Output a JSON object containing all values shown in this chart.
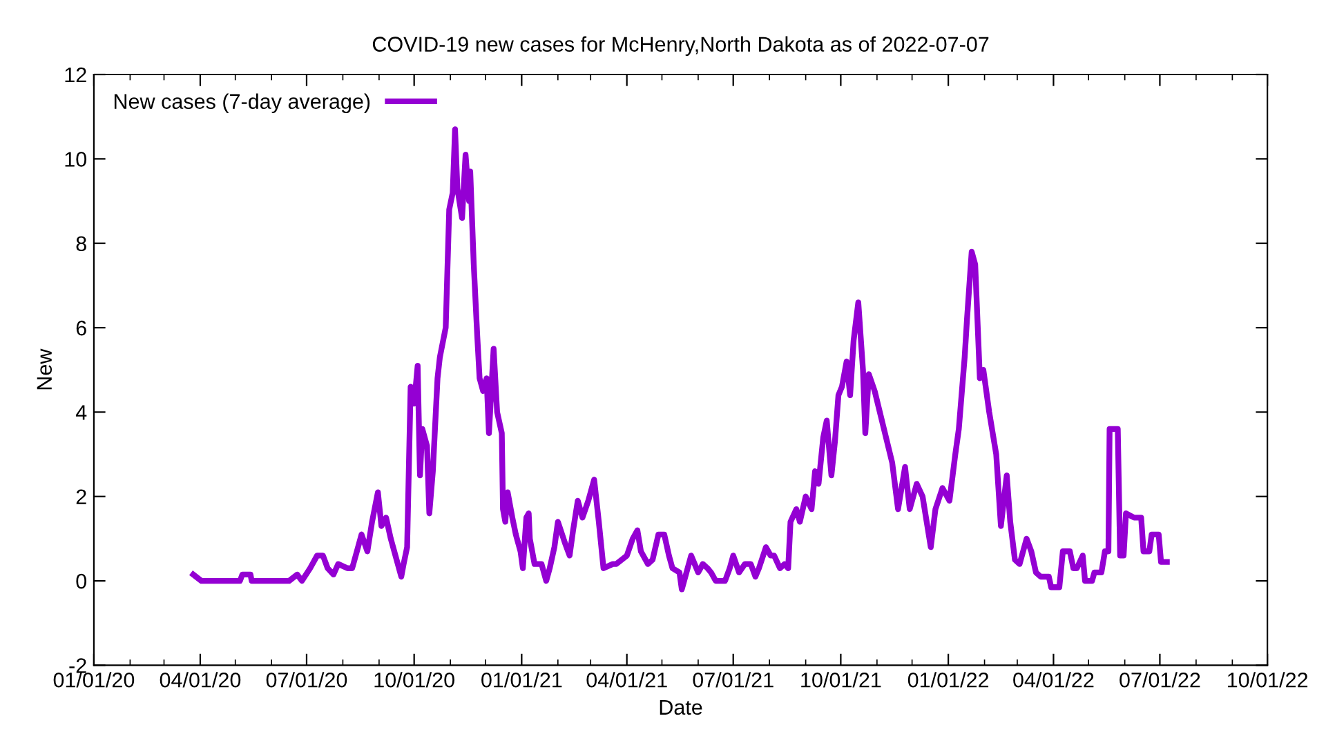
{
  "chart_data": {
    "type": "line",
    "title": "COVID-19 new cases for McHenry,North Dakota as of 2022-07-07",
    "xlabel": "Date",
    "ylabel": "New",
    "xlim": [
      "2020-01-01",
      "2022-10-01"
    ],
    "xticks": [
      {
        "value": "2020-01-01",
        "label": "01/01/20"
      },
      {
        "value": "2020-04-01",
        "label": "04/01/20"
      },
      {
        "value": "2020-07-01",
        "label": "07/01/20"
      },
      {
        "value": "2020-10-01",
        "label": "10/01/20"
      },
      {
        "value": "2021-01-01",
        "label": "01/01/21"
      },
      {
        "value": "2021-04-01",
        "label": "04/01/21"
      },
      {
        "value": "2021-07-01",
        "label": "07/01/21"
      },
      {
        "value": "2021-10-01",
        "label": "10/01/21"
      },
      {
        "value": "2022-01-01",
        "label": "01/01/22"
      },
      {
        "value": "2022-04-01",
        "label": "04/01/22"
      },
      {
        "value": "2022-07-01",
        "label": "07/01/22"
      },
      {
        "value": "2022-10-01",
        "label": "10/01/22"
      }
    ],
    "ylim": [
      -2,
      12
    ],
    "yticks": [
      -2,
      0,
      2,
      4,
      6,
      8,
      10,
      12
    ],
    "grid": false,
    "legend": "top left",
    "marker": "none",
    "line_style": "solid",
    "series": [
      {
        "name": "New cases (7-day average)",
        "color": "#9400d3",
        "x": [
          "2020-03-26",
          "2020-04-02",
          "2020-05-05",
          "2020-05-07",
          "2020-05-14",
          "2020-05-15",
          "2020-06-16",
          "2020-06-23",
          "2020-06-27",
          "2020-07-04",
          "2020-07-10",
          "2020-07-15",
          "2020-07-19",
          "2020-07-24",
          "2020-07-28",
          "2020-08-05",
          "2020-08-09",
          "2020-08-13",
          "2020-08-17",
          "2020-08-22",
          "2020-08-26",
          "2020-08-31",
          "2020-09-03",
          "2020-09-07",
          "2020-09-11",
          "2020-09-15",
          "2020-09-20",
          "2020-09-22",
          "2020-09-25",
          "2020-09-28",
          "2020-10-01",
          "2020-10-04",
          "2020-10-06",
          "2020-10-08",
          "2020-10-12",
          "2020-10-14",
          "2020-10-17",
          "2020-10-21",
          "2020-10-23",
          "2020-10-28",
          "2020-10-31",
          "2020-11-03",
          "2020-11-05",
          "2020-11-07",
          "2020-11-11",
          "2020-11-14",
          "2020-11-17",
          "2020-11-18",
          "2020-11-21",
          "2020-11-24",
          "2020-11-26",
          "2020-11-29",
          "2020-12-02",
          "2020-12-04",
          "2020-12-08",
          "2020-12-11",
          "2020-12-15",
          "2020-12-16",
          "2020-12-18",
          "2020-12-20",
          "2020-12-24",
          "2020-12-27",
          "2020-12-31",
          "2021-01-02",
          "2021-01-05",
          "2021-01-07",
          "2021-01-08",
          "2021-01-12",
          "2021-01-18",
          "2021-01-22",
          "2021-01-25",
          "2021-01-29",
          "2021-02-01",
          "2021-02-07",
          "2021-02-11",
          "2021-02-14",
          "2021-02-18",
          "2021-02-22",
          "2021-02-27",
          "2021-03-04",
          "2021-03-08",
          "2021-03-12",
          "2021-03-20",
          "2021-03-23",
          "2021-04-01",
          "2021-04-06",
          "2021-04-10",
          "2021-04-13",
          "2021-04-19",
          "2021-04-23",
          "2021-04-28",
          "2021-05-03",
          "2021-05-07",
          "2021-05-10",
          "2021-05-16",
          "2021-05-18",
          "2021-05-22",
          "2021-05-26",
          "2021-06-01",
          "2021-06-05",
          "2021-06-09",
          "2021-06-12",
          "2021-06-16",
          "2021-06-24",
          "2021-06-28",
          "2021-07-01",
          "2021-07-06",
          "2021-07-11",
          "2021-07-16",
          "2021-07-20",
          "2021-07-23",
          "2021-07-29",
          "2021-08-02",
          "2021-08-05",
          "2021-08-10",
          "2021-08-14",
          "2021-08-17",
          "2021-08-19",
          "2021-08-24",
          "2021-08-27",
          "2021-09-01",
          "2021-09-06",
          "2021-09-09",
          "2021-09-12",
          "2021-09-16",
          "2021-09-19",
          "2021-09-23",
          "2021-09-26",
          "2021-09-29",
          "2021-10-02",
          "2021-10-06",
          "2021-10-09",
          "2021-10-12",
          "2021-10-16",
          "2021-10-20",
          "2021-10-22",
          "2021-10-25",
          "2021-10-30",
          "2021-11-14",
          "2021-11-19",
          "2021-11-25",
          "2021-11-29",
          "2021-12-05",
          "2021-12-10",
          "2021-12-17",
          "2021-12-21",
          "2021-12-27",
          "2022-01-02",
          "2022-01-07",
          "2022-01-10",
          "2022-01-15",
          "2022-01-17",
          "2022-01-21",
          "2022-01-24",
          "2022-01-28",
          "2022-01-31",
          "2022-02-05",
          "2022-02-11",
          "2022-02-15",
          "2022-02-20",
          "2022-02-23",
          "2022-02-27",
          "2022-03-03",
          "2022-03-09",
          "2022-03-13",
          "2022-03-17",
          "2022-03-21",
          "2022-03-28",
          "2022-03-30",
          "2022-04-06",
          "2022-04-09",
          "2022-04-15",
          "2022-04-18",
          "2022-04-21",
          "2022-04-26",
          "2022-04-28",
          "2022-05-04",
          "2022-05-06",
          "2022-05-12",
          "2022-05-15",
          "2022-05-18",
          "2022-05-19",
          "2022-05-26",
          "2022-05-28",
          "2022-05-31",
          "2022-06-02",
          "2022-06-09",
          "2022-06-15",
          "2022-06-17",
          "2022-06-22",
          "2022-06-24",
          "2022-06-30",
          "2022-07-02",
          "2022-07-07"
        ],
        "values": [
          0.15,
          0,
          0,
          0.15,
          0.15,
          0,
          0,
          0.15,
          0,
          0.3,
          0.6,
          0.6,
          0.3,
          0.15,
          0.4,
          0.3,
          0.3,
          0.7,
          1.1,
          0.7,
          1.4,
          2.1,
          1.3,
          1.5,
          1.0,
          0.6,
          0.1,
          0.4,
          0.8,
          4.6,
          4.2,
          5.1,
          2.5,
          3.6,
          3.2,
          1.6,
          2.6,
          4.8,
          5.3,
          6.0,
          8.8,
          9.2,
          10.7,
          9.3,
          8.6,
          10.1,
          9.0,
          9.7,
          7.5,
          5.8,
          4.8,
          4.5,
          4.8,
          3.5,
          5.5,
          4.0,
          3.5,
          1.7,
          1.4,
          2.1,
          1.5,
          1.1,
          0.7,
          0.3,
          1.5,
          1.6,
          1.0,
          0.4,
          0.4,
          0,
          0.3,
          0.8,
          1.4,
          0.9,
          0.6,
          1.2,
          1.9,
          1.5,
          1.9,
          2.4,
          1.4,
          0.3,
          0.4,
          0.4,
          0.6,
          1.0,
          1.2,
          0.7,
          0.4,
          0.5,
          1.1,
          1.1,
          0.6,
          0.3,
          0.2,
          -0.2,
          0.2,
          0.6,
          0.2,
          0.4,
          0.3,
          0.2,
          0,
          0,
          0.3,
          0.6,
          0.2,
          0.4,
          0.4,
          0.1,
          0.3,
          0.8,
          0.6,
          0.6,
          0.3,
          0.4,
          0.3,
          1.4,
          1.7,
          1.4,
          2.0,
          1.7,
          2.6,
          2.3,
          3.4,
          3.8,
          2.5,
          3.3,
          4.4,
          4.6,
          5.2,
          4.4,
          5.7,
          6.6,
          5.0,
          3.5,
          4.9,
          4.5,
          2.8,
          1.7,
          2.7,
          1.7,
          2.3,
          2.0,
          0.8,
          1.7,
          2.2,
          1.9,
          3.0,
          3.6,
          5.3,
          6.2,
          7.8,
          7.5,
          4.8,
          5.0,
          4.0,
          3.0,
          1.3,
          2.5,
          1.4,
          0.5,
          0.4,
          1.0,
          0.7,
          0.2,
          0.1,
          0.1,
          -0.15,
          -0.15,
          0.7,
          0.7,
          0.3,
          0.3,
          0.6,
          0,
          0,
          0.2,
          0.2,
          0.7,
          0.7,
          3.6,
          3.6,
          0.6,
          0.6,
          1.6,
          1.5,
          1.5,
          0.7,
          0.7,
          1.1,
          1.1,
          0.45,
          0.45
        ]
      }
    ]
  }
}
